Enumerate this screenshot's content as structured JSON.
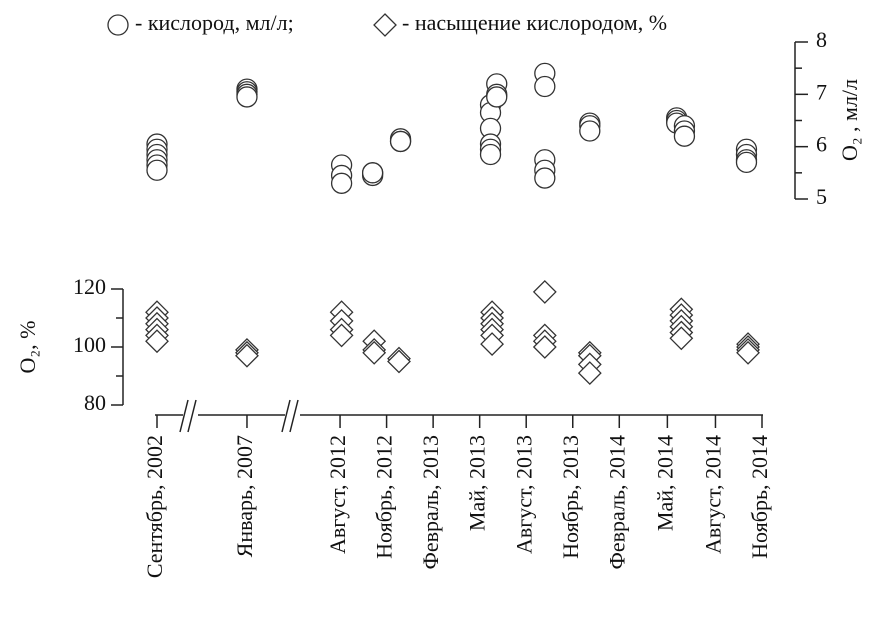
{
  "chart_data": {
    "type": "scatter",
    "xlim": [
      0,
      39
    ],
    "xticks": [
      {
        "value": 0,
        "label": "Сентябрь, 2002"
      },
      {
        "value": 5.8,
        "label": "Январь, 2007"
      },
      {
        "value": 11.8,
        "label": "Август, 2012"
      },
      {
        "value": 14.8,
        "label": "Ноябрь, 2012"
      },
      {
        "value": 17.8,
        "label": "Февраль, 2013"
      },
      {
        "value": 20.8,
        "label": "Май, 2013"
      },
      {
        "value": 23.8,
        "label": "Август, 2013"
      },
      {
        "value": 26.8,
        "label": "Ноябрь, 2013"
      },
      {
        "value": 29.8,
        "label": "Февраль, 2014"
      },
      {
        "value": 32.9,
        "label": "Май, 2014"
      },
      {
        "value": 36,
        "label": "Август, 2014"
      },
      {
        "value": 39,
        "label": "Ноябрь, 2014"
      }
    ],
    "ylabel": "O₂, %",
    "ylim": [
      80,
      120
    ],
    "yticks": [
      80,
      100,
      120
    ],
    "yminor_ticks": [
      90,
      110
    ],
    "y2label": "O₂ , мл/л",
    "y2lim": [
      5,
      8
    ],
    "y2ticks": [
      5,
      6,
      7,
      8
    ],
    "y2minor_ticks": [
      5.5,
      6.5,
      7.5
    ],
    "series": [
      {
        "name": "-  кислород, мл/л;",
        "marker": "circle",
        "color": "#333333",
        "axis": "y2",
        "x": [
          0,
          0,
          0,
          0,
          0,
          0,
          5.8,
          5.8,
          5.8,
          5.8,
          11.9,
          11.9,
          11.9,
          13.9,
          13.9,
          13.9,
          15.7,
          15.7,
          15.7,
          21.5,
          21.5,
          21.5,
          21.5,
          21.5,
          21.5,
          21.9,
          21.9,
          21.9,
          25,
          25,
          25,
          25,
          25,
          27.9,
          27.9,
          27.9,
          33.5,
          33.5,
          33.5,
          34,
          34,
          34,
          38,
          38,
          38,
          38
        ],
        "values": [
          6.05,
          5.95,
          5.85,
          5.75,
          5.65,
          5.55,
          7.1,
          7.05,
          7.0,
          6.95,
          5.65,
          5.45,
          5.3,
          5.5,
          5.45,
          5.5,
          6.15,
          6.1,
          6.1,
          6.8,
          6.65,
          6.35,
          6.05,
          5.95,
          5.85,
          7.2,
          7.0,
          6.95,
          7.4,
          7.15,
          5.75,
          5.55,
          5.4,
          6.45,
          6.4,
          6.3,
          6.55,
          6.5,
          6.45,
          6.4,
          6.3,
          6.2,
          5.95,
          5.85,
          5.75,
          5.7
        ]
      },
      {
        "name": "-  насыщение кислородом, %",
        "marker": "diamond",
        "color": "#333333",
        "x": [
          0,
          0,
          0,
          0,
          0,
          0,
          5.8,
          5.8,
          5.8,
          11.9,
          11.9,
          11.9,
          11.9,
          14,
          14,
          14,
          15.6,
          15.6,
          21.6,
          21.6,
          21.6,
          21.6,
          21.6,
          21.6,
          25,
          25,
          25,
          25,
          27.9,
          27.9,
          27.9,
          27.9,
          33.8,
          33.8,
          33.8,
          33.8,
          33.8,
          33.8,
          38.1,
          38.1,
          38.1,
          38.1
        ],
        "values": [
          112,
          110,
          108,
          106,
          104,
          102,
          99,
          98,
          97,
          112,
          109,
          106,
          104,
          102,
          99,
          98,
          96,
          95,
          112,
          110,
          108,
          106,
          104,
          101,
          119,
          104,
          102,
          100,
          98,
          97,
          94,
          91,
          113,
          111,
          109,
          107,
          105,
          103,
          101,
          100,
          99,
          98
        ]
      }
    ]
  }
}
